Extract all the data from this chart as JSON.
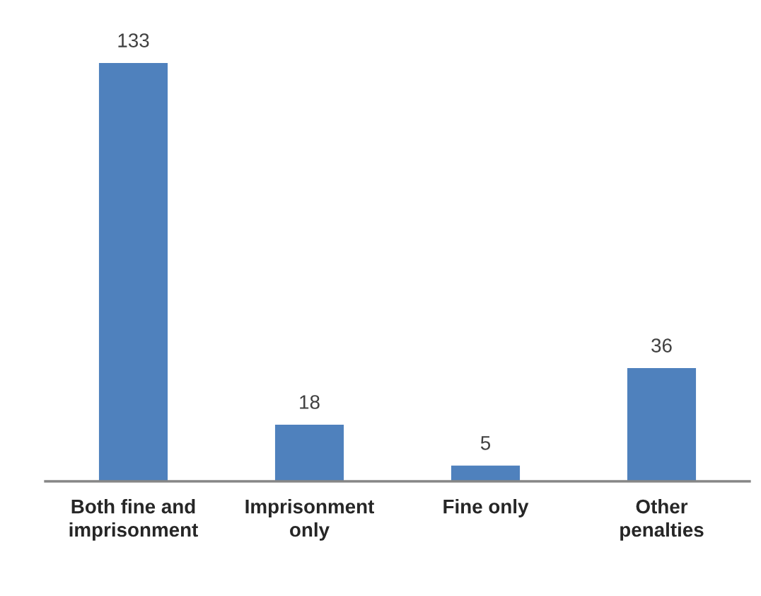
{
  "chart_data": {
    "type": "bar",
    "categories": [
      "Both fine and\nimprisonment",
      "Imprisonment\nonly",
      "Fine only",
      "Other\npenalties"
    ],
    "values": [
      133,
      18,
      5,
      36
    ],
    "color": "#4f81bd",
    "data_labels": true
  }
}
